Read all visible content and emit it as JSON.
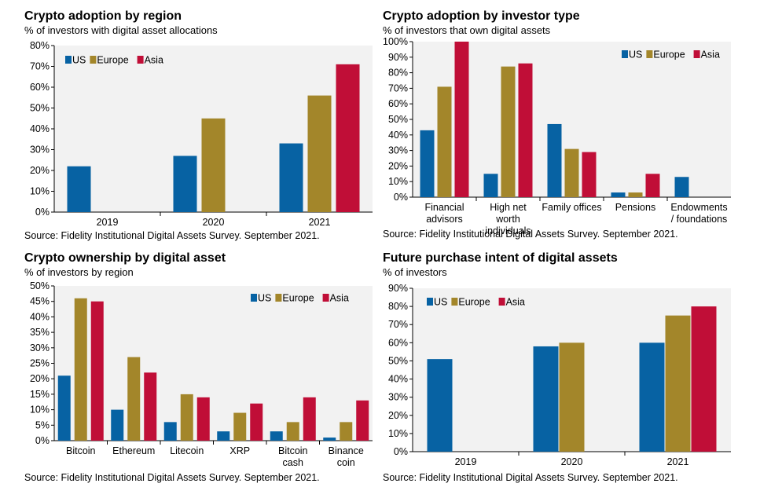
{
  "colors": {
    "US": "#0762a3",
    "Europe": "#a3862a",
    "Asia": "#c00e37",
    "plot_bg": "#f2f2f2",
    "axis": "#000000"
  },
  "chart_data": [
    {
      "type": "bar",
      "title": "Crypto adoption by region",
      "subtitle": "% of investors with digital asset allocations",
      "source": "Source: Fidelity Institutional Digital Assets Survey. September 2021.",
      "categories": [
        "2019",
        "2020",
        "2021"
      ],
      "series": [
        {
          "name": "US",
          "values": [
            22,
            27,
            33
          ]
        },
        {
          "name": "Europe",
          "values": [
            null,
            45,
            56
          ]
        },
        {
          "name": "Asia",
          "values": [
            null,
            null,
            71
          ]
        }
      ],
      "ylim": [
        0,
        80
      ],
      "ytick_step": 10,
      "ytick_suffix": "%",
      "yticks": [
        "0%",
        "10%",
        "20%",
        "30%",
        "40%",
        "50%",
        "60%",
        "70%",
        "80%"
      ],
      "legend": "top-left",
      "grid": false
    },
    {
      "type": "bar",
      "title": "Crypto adoption by investor type",
      "subtitle": "% of investors that own digital assets",
      "source": "Source: Fidelity Institutional Digital Assets Survey. September 2021.",
      "categories": [
        [
          "Financial",
          "advisors"
        ],
        [
          "High net",
          "worth",
          "individuals"
        ],
        [
          "Family offices"
        ],
        [
          "Pensions"
        ],
        [
          "Endowments",
          "/ foundations"
        ]
      ],
      "series": [
        {
          "name": "US",
          "values": [
            43,
            15,
            47,
            3,
            13
          ]
        },
        {
          "name": "Europe",
          "values": [
            71,
            84,
            31,
            3,
            null
          ]
        },
        {
          "name": "Asia",
          "values": [
            100,
            86,
            29,
            15,
            null
          ]
        }
      ],
      "ylim": [
        0,
        100
      ],
      "ytick_step": 10,
      "ytick_suffix": "%",
      "yticks": [
        "0%",
        "10%",
        "20%",
        "30%",
        "40%",
        "50%",
        "60%",
        "70%",
        "80%",
        "90%",
        "100%"
      ],
      "legend": "top-right",
      "grid": false
    },
    {
      "type": "bar",
      "title": "Crypto ownership by digital asset",
      "subtitle": "% of investors by region",
      "source": "Source: Fidelity Institutional Digital Assets Survey. September 2021.",
      "categories": [
        [
          "Bitcoin"
        ],
        [
          "Ethereum"
        ],
        [
          "Litecoin"
        ],
        [
          "XRP"
        ],
        [
          "Bitcoin",
          "cash"
        ],
        [
          "Binance",
          "coin"
        ]
      ],
      "series": [
        {
          "name": "US",
          "values": [
            21,
            10,
            6,
            3,
            3,
            1
          ]
        },
        {
          "name": "Europe",
          "values": [
            46,
            27,
            15,
            9,
            6,
            6
          ]
        },
        {
          "name": "Asia",
          "values": [
            45,
            22,
            14,
            12,
            14,
            13
          ]
        }
      ],
      "ylim": [
        0,
        50
      ],
      "ytick_step": 5,
      "ytick_suffix": "%",
      "yticks": [
        "0%",
        "5%",
        "10%",
        "15%",
        "20%",
        "25%",
        "30%",
        "35%",
        "40%",
        "45%",
        "50%"
      ],
      "legend": "top-right",
      "grid": false
    },
    {
      "type": "bar",
      "title": "Future purchase intent of digital assets",
      "subtitle": "% of investors",
      "source": "Source: Fidelity Institutional Digital Assets Survey. September 2021.",
      "categories": [
        "2019",
        "2020",
        "2021"
      ],
      "series": [
        {
          "name": "US",
          "values": [
            51,
            58,
            60
          ]
        },
        {
          "name": "Europe",
          "values": [
            null,
            60,
            75
          ]
        },
        {
          "name": "Asia",
          "values": [
            null,
            null,
            80
          ]
        }
      ],
      "ylim": [
        0,
        90
      ],
      "ytick_step": 10,
      "ytick_suffix": "%",
      "yticks": [
        "0%",
        "10%",
        "20%",
        "30%",
        "40%",
        "50%",
        "60%",
        "70%",
        "80%",
        "90%"
      ],
      "legend": "top-left",
      "grid": false
    }
  ]
}
